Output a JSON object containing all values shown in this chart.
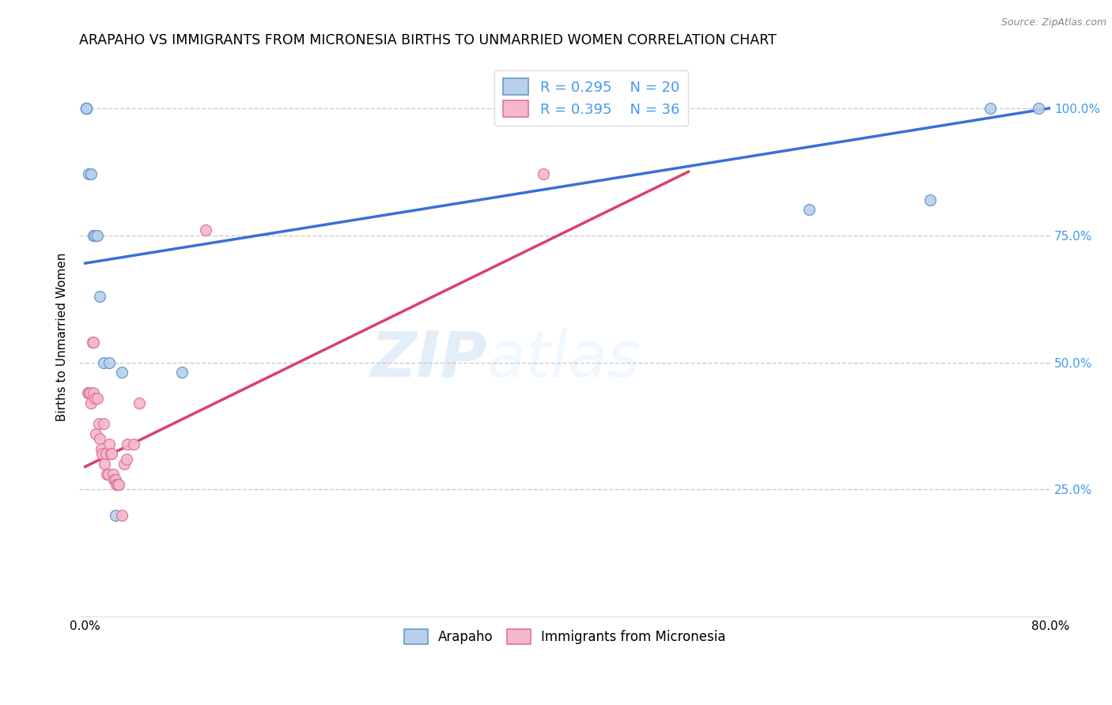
{
  "title": "ARAPAHO VS IMMIGRANTS FROM MICRONESIA BIRTHS TO UNMARRIED WOMEN CORRELATION CHART",
  "source": "Source: ZipAtlas.com",
  "ylabel": "Births to Unmarried Women",
  "xlim": [
    -0.005,
    0.8
  ],
  "ylim": [
    0.0,
    1.1
  ],
  "xticks": [
    0.0,
    0.1,
    0.2,
    0.3,
    0.4,
    0.5,
    0.6,
    0.7,
    0.8
  ],
  "xticklabels": [
    "0.0%",
    "",
    "",
    "",
    "",
    "",
    "",
    "",
    "80.0%"
  ],
  "yticks_right": [
    0.25,
    0.5,
    0.75,
    1.0
  ],
  "yticklabels_right": [
    "25.0%",
    "50.0%",
    "75.0%",
    "100.0%"
  ],
  "grid_color": "#cccccc",
  "background_color": "#ffffff",
  "watermark_zip": "ZIP",
  "watermark_atlas": "atlas",
  "legend_r1": "R = 0.295",
  "legend_n1": "N = 20",
  "legend_r2": "R = 0.395",
  "legend_n2": "N = 36",
  "series1_color": "#b8d0ea",
  "series1_edge": "#6699cc",
  "series2_color": "#f5b8cc",
  "series2_edge": "#dd7799",
  "line1_color": "#3a6fd8",
  "line2_color": "#d94070",
  "title_fontsize": 12.5,
  "axis_label_fontsize": 11,
  "tick_fontsize": 11,
  "right_tick_color": "#4499ee",
  "marker_size": 100,
  "arapaho_x": [
    0.001,
    0.001,
    0.001,
    0.001,
    0.001,
    0.003,
    0.005,
    0.007,
    0.008,
    0.01,
    0.012,
    0.015,
    0.02,
    0.025,
    0.03,
    0.08,
    0.6,
    0.7,
    0.75,
    0.79
  ],
  "arapaho_y": [
    1.0,
    1.0,
    1.0,
    1.0,
    1.0,
    0.87,
    0.87,
    0.75,
    0.75,
    0.75,
    0.63,
    0.5,
    0.5,
    0.2,
    0.48,
    0.48,
    0.8,
    0.82,
    1.0,
    1.0
  ],
  "micronesia_x": [
    0.002,
    0.003,
    0.004,
    0.005,
    0.006,
    0.007,
    0.007,
    0.008,
    0.009,
    0.01,
    0.011,
    0.012,
    0.013,
    0.014,
    0.015,
    0.016,
    0.017,
    0.018,
    0.019,
    0.02,
    0.021,
    0.022,
    0.023,
    0.024,
    0.025,
    0.026,
    0.027,
    0.028,
    0.03,
    0.032,
    0.034,
    0.035,
    0.04,
    0.045,
    0.38,
    0.1
  ],
  "micronesia_y": [
    0.44,
    0.44,
    0.44,
    0.42,
    0.54,
    0.54,
    0.44,
    0.43,
    0.36,
    0.43,
    0.38,
    0.35,
    0.33,
    0.32,
    0.38,
    0.3,
    0.32,
    0.28,
    0.28,
    0.34,
    0.32,
    0.32,
    0.28,
    0.27,
    0.27,
    0.26,
    0.26,
    0.26,
    0.2,
    0.3,
    0.31,
    0.34,
    0.34,
    0.42,
    0.87,
    0.76
  ],
  "line1_x0": 0.0,
  "line1_y0": 0.695,
  "line1_x1": 0.8,
  "line1_y1": 1.0,
  "line2_x0": 0.0,
  "line2_y0": 0.295,
  "line2_x1": 0.5,
  "line2_y1": 0.875
}
